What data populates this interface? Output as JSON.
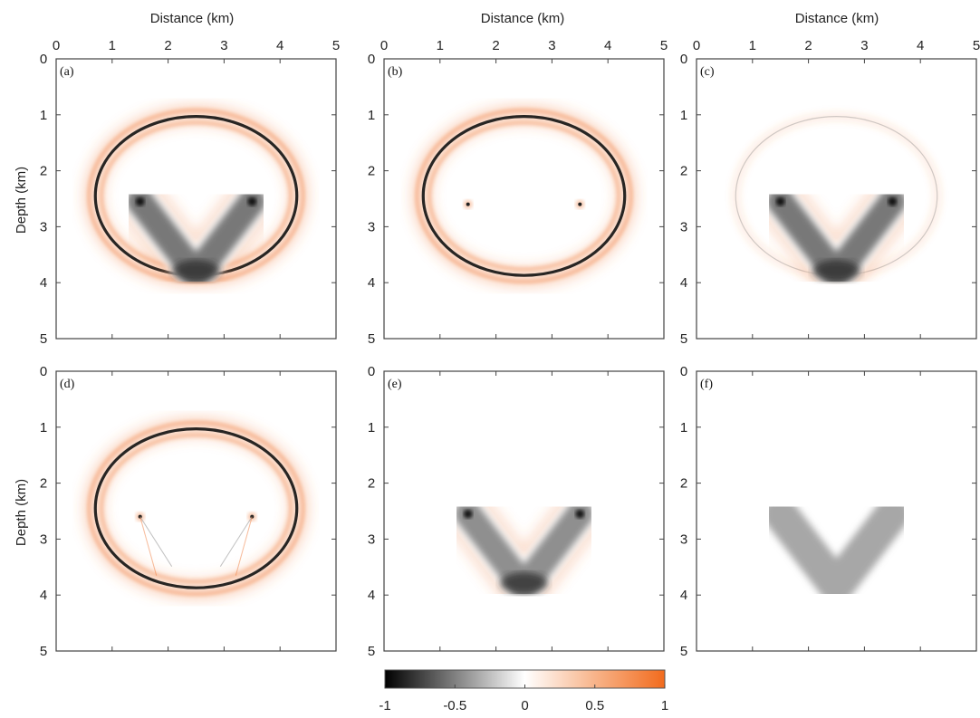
{
  "figure": {
    "x_axis_title": "Distance (km)",
    "y_axis_title": "Depth (km)",
    "x_ticks": [
      "0",
      "1",
      "2",
      "3",
      "4",
      "5"
    ],
    "y_ticks": [
      "0",
      "1",
      "2",
      "3",
      "4",
      "5"
    ],
    "panels": [
      {
        "label": "(a)",
        "content": "ellipse-strong+v-strong"
      },
      {
        "label": "(b)",
        "content": "ellipse-strong+points"
      },
      {
        "label": "(c)",
        "content": "ellipse-faint+v-strong"
      },
      {
        "label": "(d)",
        "content": "ellipse-strong+crosses"
      },
      {
        "label": "(e)",
        "content": "v-medium"
      },
      {
        "label": "(f)",
        "content": "v-smooth"
      }
    ]
  },
  "colorbar": {
    "ticks": [
      "-1",
      "-0.5",
      "0",
      "0.5",
      "1"
    ],
    "range": [
      -1,
      1
    ],
    "colors": [
      "#000000",
      "#808080",
      "#ffffff",
      "#f8b48a",
      "#f26b1d"
    ]
  },
  "colors": {
    "orange": "#f07a3a",
    "frame": "#444444"
  }
}
